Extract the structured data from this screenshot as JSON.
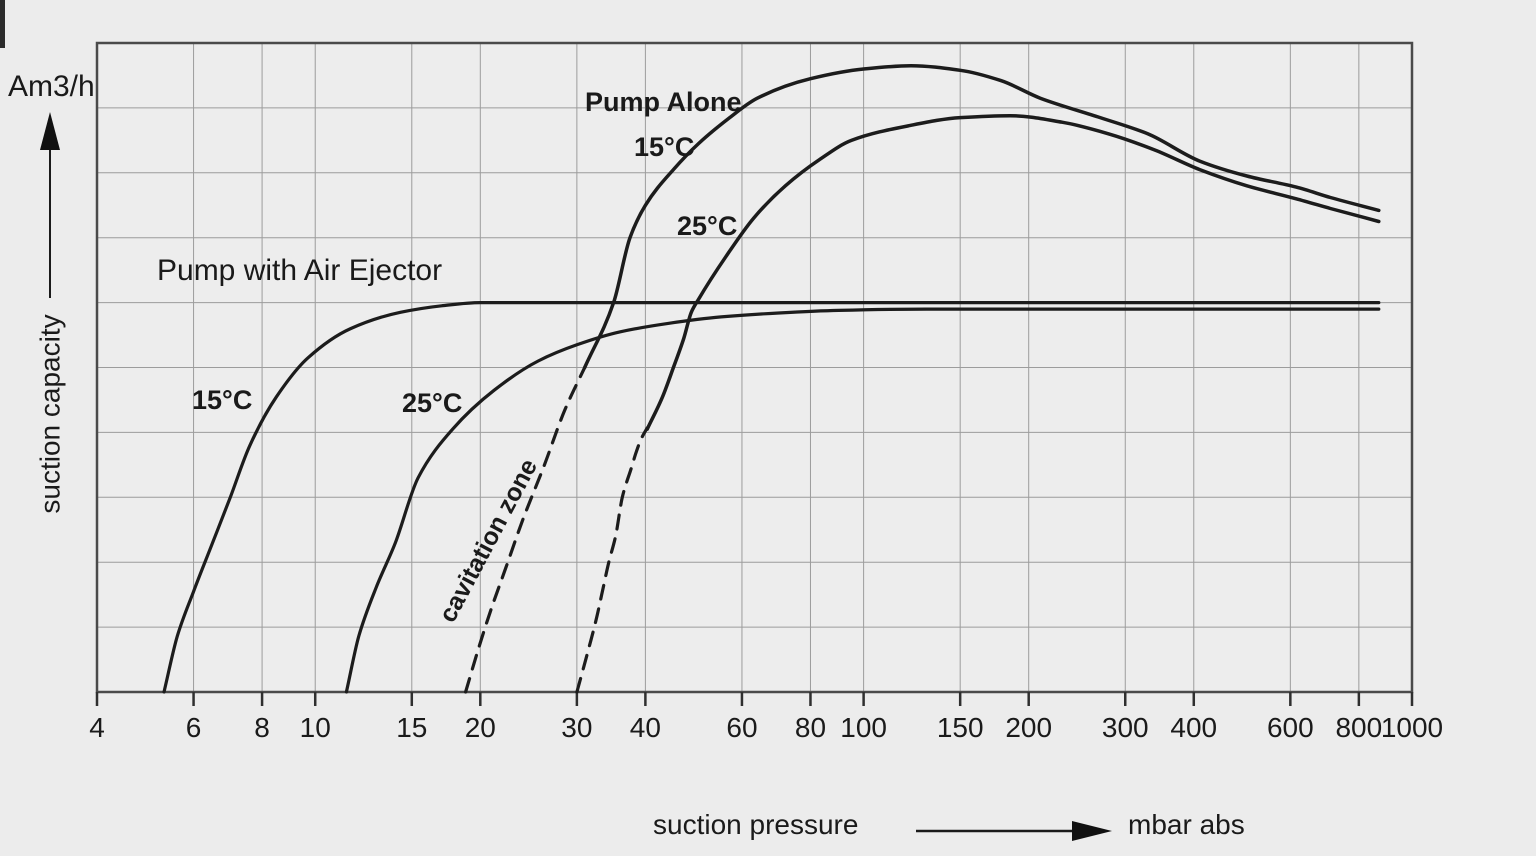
{
  "page": {
    "background": "#ececec"
  },
  "chart_data": {
    "type": "line",
    "title": "",
    "x_axis": {
      "label": "suction pressure",
      "unit": "mbar abs",
      "scale": "log",
      "min": 4,
      "max": 1000,
      "ticks": [
        4,
        6,
        8,
        10,
        15,
        20,
        30,
        40,
        60,
        80,
        100,
        150,
        200,
        300,
        400,
        600,
        800,
        1000
      ],
      "grid": true
    },
    "y_axis": {
      "label": "suction capacity",
      "unit": "Am3/h",
      "scale": "linear",
      "numeric_labels_shown": false,
      "values_unit": "relative grid divisions (0-10), axis unlabeled in source",
      "ylim": [
        0,
        10
      ],
      "grid_divisions": 10,
      "grid": true
    },
    "series": [
      {
        "name": "Pump with Air Ejector - 15°C",
        "label": "15°C",
        "style": "solid",
        "width": 3.2,
        "points": [
          [
            5.3,
            0
          ],
          [
            5.6,
            0.85
          ],
          [
            6.0,
            1.55
          ],
          [
            6.5,
            2.3
          ],
          [
            7.0,
            3.0
          ],
          [
            7.6,
            3.8
          ],
          [
            8.5,
            4.55
          ],
          [
            9.7,
            5.15
          ],
          [
            11.6,
            5.6
          ],
          [
            14.3,
            5.85
          ],
          [
            17.0,
            5.95
          ],
          [
            20.0,
            6.0
          ],
          [
            60,
            6.0
          ],
          [
            200,
            6.0
          ],
          [
            870,
            6.0
          ]
        ]
      },
      {
        "name": "Pump with Air Ejector - 25°C",
        "label": "25°C",
        "style": "solid",
        "width": 3.2,
        "points": [
          [
            11.4,
            0
          ],
          [
            12.0,
            0.85
          ],
          [
            12.9,
            1.6
          ],
          [
            14.0,
            2.3
          ],
          [
            15.4,
            3.3
          ],
          [
            17.8,
            4.05
          ],
          [
            21.2,
            4.65
          ],
          [
            25.5,
            5.1
          ],
          [
            30,
            5.35
          ],
          [
            36,
            5.55
          ],
          [
            44,
            5.68
          ],
          [
            55,
            5.78
          ],
          [
            70,
            5.84
          ],
          [
            90,
            5.88
          ],
          [
            130,
            5.9
          ],
          [
            400,
            5.9
          ],
          [
            870,
            5.9
          ]
        ]
      },
      {
        "name": "Pump Alone - 15°C",
        "label": "15°C",
        "style": "solid",
        "width": 3.5,
        "points": [
          [
            31,
            5.0
          ],
          [
            35,
            6.0
          ],
          [
            37.5,
            7.0
          ],
          [
            40,
            7.5
          ],
          [
            45,
            8.05
          ],
          [
            50,
            8.45
          ],
          [
            57,
            8.85
          ],
          [
            64,
            9.15
          ],
          [
            80,
            9.45
          ],
          [
            100,
            9.6
          ],
          [
            122,
            9.65
          ],
          [
            150,
            9.58
          ],
          [
            178,
            9.42
          ],
          [
            210,
            9.15
          ],
          [
            270,
            8.85
          ],
          [
            330,
            8.6
          ],
          [
            410,
            8.18
          ],
          [
            500,
            7.95
          ],
          [
            615,
            7.78
          ],
          [
            710,
            7.62
          ],
          [
            870,
            7.42
          ]
        ]
      },
      {
        "name": "Pump Alone - 25°C",
        "label": "25°C",
        "style": "solid",
        "width": 3.5,
        "points": [
          [
            40.3,
            4.05
          ],
          [
            43,
            4.55
          ],
          [
            45,
            5.0
          ],
          [
            47,
            5.45
          ],
          [
            48.5,
            5.85
          ],
          [
            50,
            6.05
          ],
          [
            56,
            6.7
          ],
          [
            63,
            7.3
          ],
          [
            72,
            7.8
          ],
          [
            83,
            8.2
          ],
          [
            95,
            8.5
          ],
          [
            120,
            8.72
          ],
          [
            150,
            8.85
          ],
          [
            185,
            8.88
          ],
          [
            230,
            8.78
          ],
          [
            280,
            8.6
          ],
          [
            340,
            8.35
          ],
          [
            410,
            8.05
          ],
          [
            500,
            7.8
          ],
          [
            615,
            7.6
          ],
          [
            710,
            7.45
          ],
          [
            870,
            7.25
          ]
        ]
      },
      {
        "name": "Cavitation zone boundary - 15°C",
        "label": "cavitation zone",
        "style": "dashed",
        "width": 3.2,
        "points": [
          [
            18.8,
            0
          ],
          [
            19.9,
            0.7
          ],
          [
            20.9,
            1.26
          ],
          [
            22.3,
            1.93
          ],
          [
            23.9,
            2.65
          ],
          [
            26.1,
            3.47
          ],
          [
            28.5,
            4.34
          ],
          [
            31,
            5.0
          ]
        ]
      },
      {
        "name": "Cavitation zone boundary - 25°C",
        "label": "cavitation zone",
        "style": "dashed",
        "width": 3.2,
        "points": [
          [
            30.0,
            0
          ],
          [
            31.6,
            0.7
          ],
          [
            32.5,
            1.1
          ],
          [
            33.3,
            1.5
          ],
          [
            34.3,
            2.0
          ],
          [
            35.3,
            2.4
          ],
          [
            36.3,
            3.0
          ],
          [
            37.7,
            3.45
          ],
          [
            38.5,
            3.7
          ],
          [
            39.3,
            3.9
          ],
          [
            40.3,
            4.07
          ]
        ]
      }
    ],
    "annotations": {
      "pump_alone": {
        "text": "Pump Alone"
      },
      "pump_alone_15c": {
        "text": "15°C"
      },
      "pump_alone_25c": {
        "text": "25°C"
      },
      "ejector": {
        "text": "Pump with Air Ejector"
      },
      "ejector_15c": {
        "text": "15°C"
      },
      "ejector_25c": {
        "text": "25°C"
      },
      "cavitation": {
        "text": "cavitation zone"
      }
    },
    "axis_labels": {
      "y_unit": "Am3/h",
      "y_title": "suction capacity",
      "x_title": "suction pressure",
      "x_unit": "mbar abs"
    },
    "style": {
      "curve_color": "#1c1c1c",
      "grid_color": "#9c9c9c",
      "border_color": "#4a4a4a",
      "tick_color": "#2f2f2f",
      "text_color": "#1a1a1a",
      "plot_background": "#ededed",
      "legend_position": "none"
    }
  }
}
